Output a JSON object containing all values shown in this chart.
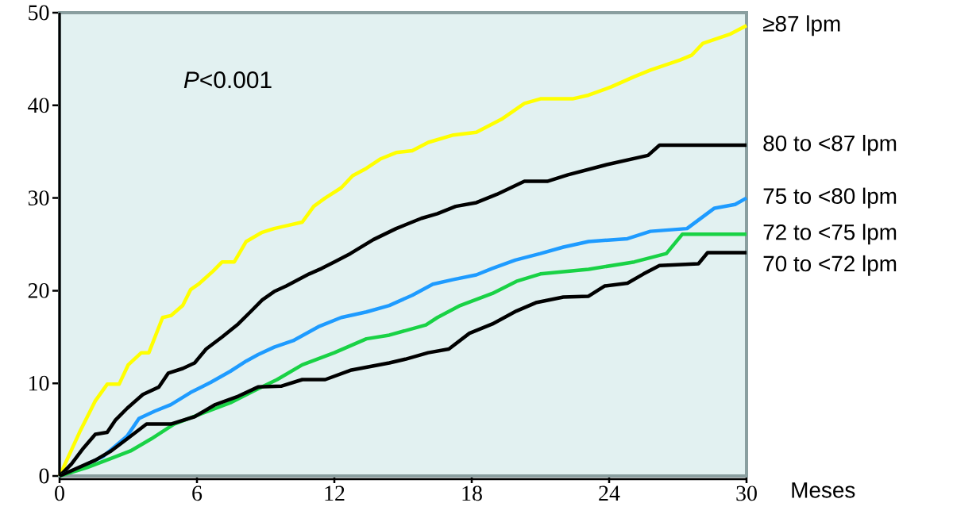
{
  "chart_data": {
    "type": "line",
    "xlabel": "Meses",
    "annotations": [
      "*P*<0.001"
    ],
    "xlim": [
      0,
      30
    ],
    "ylim": [
      0,
      50
    ],
    "xticks": [
      0,
      6,
      12,
      18,
      24,
      30
    ],
    "yticks": [
      0,
      10,
      20,
      30,
      40,
      50
    ],
    "grid": false,
    "marker": "none",
    "line_style": "solid",
    "series": [
      {
        "name": "≥87 lpm",
        "color": "#ffff00",
        "x": [
          0,
          0.87,
          1.56,
          2.08,
          2.6,
          3.0,
          3.57,
          3.9,
          4.5,
          4.86,
          5.38,
          5.72,
          6.07,
          6.7,
          7.1,
          7.63,
          8.15,
          8.85,
          9.37,
          9.9,
          10.6,
          11.1,
          11.6,
          12.3,
          12.8,
          13.4,
          14.0,
          14.7,
          15.4,
          16.1,
          17.2,
          18.2,
          19.3,
          20.3,
          21.0,
          22.4,
          23.1,
          24.1,
          25.1,
          25.8,
          27.1,
          27.6,
          28.1,
          29.3,
          30
        ],
        "values": [
          0,
          4.7,
          8.1,
          9.9,
          9.9,
          12.0,
          13.3,
          13.3,
          17.1,
          17.3,
          18.4,
          20.1,
          20.7,
          22.1,
          23.1,
          23.1,
          25.3,
          26.3,
          26.7,
          27.0,
          27.4,
          29.1,
          30.0,
          31.1,
          32.4,
          33.2,
          34.2,
          34.9,
          35.1,
          36.0,
          36.8,
          37.1,
          38.5,
          40.2,
          40.7,
          40.7,
          41.1,
          42.0,
          43.1,
          43.8,
          44.9,
          45.4,
          46.7,
          47.7,
          48.6
        ]
      },
      {
        "name": "80 to <87 lpm",
        "color": "#000000",
        "x": [
          0,
          0.52,
          1.04,
          1.56,
          2.08,
          2.43,
          2.95,
          3.64,
          4.34,
          4.75,
          5.38,
          5.9,
          6.4,
          7.1,
          7.8,
          8.33,
          8.85,
          9.37,
          9.9,
          10.9,
          11.45,
          12.0,
          12.7,
          13.7,
          14.7,
          15.8,
          16.5,
          17.3,
          18.2,
          19.1,
          20.3,
          21.3,
          22.2,
          23.9,
          25.7,
          26.2,
          30
        ],
        "values": [
          0,
          1.3,
          3.0,
          4.5,
          4.7,
          6.0,
          7.3,
          8.8,
          9.6,
          11.1,
          11.6,
          12.2,
          13.7,
          15.0,
          16.4,
          17.7,
          19.0,
          19.9,
          20.5,
          21.8,
          22.4,
          23.1,
          24.0,
          25.5,
          26.7,
          27.8,
          28.3,
          29.1,
          29.5,
          30.4,
          31.8,
          31.8,
          32.5,
          33.6,
          34.6,
          35.7,
          35.7
        ]
      },
      {
        "name": "75 to <80 lpm",
        "color": "#1e9bff",
        "x": [
          0,
          0.87,
          1.9,
          2.95,
          3.47,
          4.16,
          4.86,
          5.72,
          6.6,
          7.46,
          8.15,
          8.67,
          9.37,
          10.2,
          11.3,
          12.3,
          13.4,
          14.4,
          15.4,
          16.3,
          17.2,
          18.2,
          18.9,
          19.9,
          21.0,
          22.0,
          23.1,
          24.8,
          25.8,
          27.4,
          28.6,
          29.5,
          30
        ],
        "values": [
          0,
          0.9,
          2.1,
          4.3,
          6.2,
          7.0,
          7.7,
          9.0,
          10.1,
          11.3,
          12.4,
          13.1,
          13.9,
          14.6,
          16.1,
          17.1,
          17.7,
          18.4,
          19.5,
          20.7,
          21.2,
          21.7,
          22.4,
          23.3,
          24.0,
          24.7,
          25.3,
          25.6,
          26.4,
          26.7,
          28.9,
          29.3,
          30.0
        ]
      },
      {
        "name": "72 to <75 lpm",
        "color": "#19d245",
        "x": [
          0,
          1.2,
          2.25,
          3.1,
          4.0,
          5.0,
          6.07,
          7.46,
          8.5,
          9.5,
          10.6,
          12.0,
          13.4,
          14.4,
          16.0,
          16.5,
          17.5,
          18.9,
          19.95,
          21.0,
          23.1,
          25.1,
          26.5,
          27.2,
          30
        ],
        "values": [
          0,
          0.9,
          1.9,
          2.7,
          4.0,
          5.6,
          6.6,
          7.9,
          9.2,
          10.4,
          12.0,
          13.3,
          14.8,
          15.2,
          16.3,
          17.1,
          18.4,
          19.7,
          21.0,
          21.8,
          22.3,
          23.1,
          24.0,
          26.1,
          26.1
        ]
      },
      {
        "name": "70 to <72 lpm",
        "color": "#000000",
        "x": [
          0,
          1.56,
          2.25,
          2.95,
          3.8,
          4.86,
          5.9,
          6.8,
          7.8,
          8.67,
          9.7,
          10.6,
          11.6,
          12.7,
          14.4,
          15.1,
          16.1,
          17.0,
          17.9,
          18.9,
          19.95,
          20.8,
          22.0,
          23.1,
          23.8,
          24.8,
          25.5,
          26.2,
          27.9,
          28.3,
          30
        ],
        "values": [
          0,
          1.7,
          2.7,
          4.0,
          5.6,
          5.6,
          6.4,
          7.7,
          8.6,
          9.6,
          9.7,
          10.4,
          10.4,
          11.4,
          12.2,
          12.6,
          13.3,
          13.7,
          15.4,
          16.4,
          17.8,
          18.7,
          19.3,
          19.4,
          20.5,
          20.8,
          21.8,
          22.7,
          22.9,
          24.1,
          24.1
        ]
      }
    ]
  }
}
